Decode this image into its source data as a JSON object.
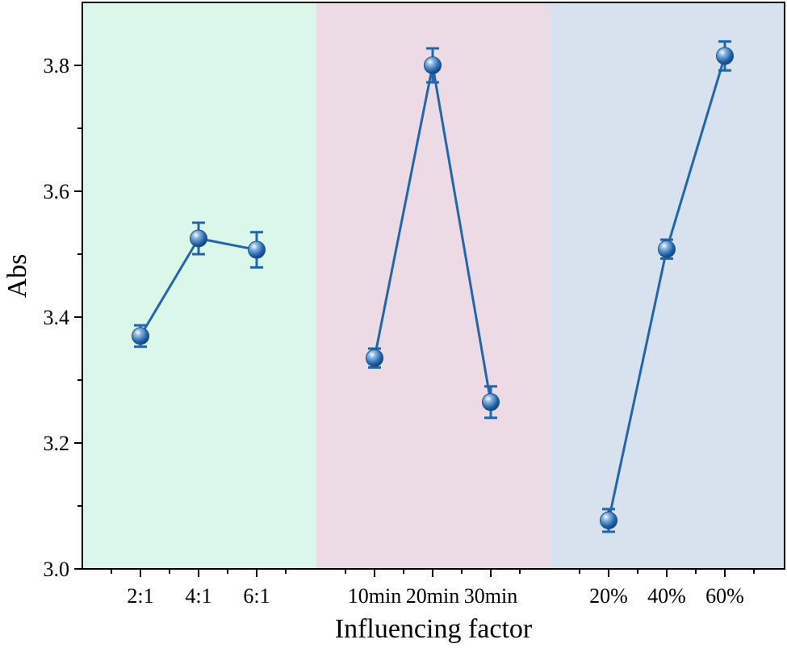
{
  "chart_data": {
    "type": "line",
    "xlabel": "Influencing factor",
    "ylabel": "Abs",
    "ylim": [
      3.0,
      3.9
    ],
    "yticks": [
      3.0,
      3.2,
      3.4,
      3.6,
      3.8
    ],
    "ytick_labels": [
      "3.0",
      "3.2",
      "3.4",
      "3.6",
      "3.8"
    ],
    "grid": false,
    "legend": "none",
    "line_color": "#2166ac",
    "groups": [
      {
        "background": "#dbf7ea",
        "categories": [
          "2:1",
          "4:1",
          "6:1"
        ],
        "values": [
          3.37,
          3.525,
          3.507
        ],
        "errors": [
          0.017,
          0.025,
          0.028
        ]
      },
      {
        "background": "#ecdbe4",
        "categories": [
          "10min",
          "20min",
          "30min"
        ],
        "values": [
          3.335,
          3.8,
          3.265
        ],
        "errors": [
          0.015,
          0.027,
          0.025
        ]
      },
      {
        "background": "#d8e2ee",
        "categories": [
          "20%",
          "40%",
          "60%"
        ],
        "values": [
          3.077,
          3.508,
          3.815
        ],
        "errors": [
          0.018,
          0.015,
          0.023
        ]
      }
    ]
  }
}
